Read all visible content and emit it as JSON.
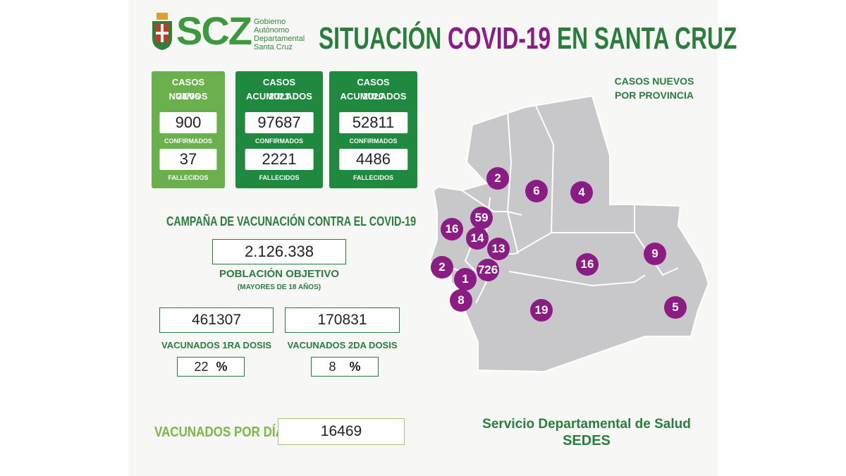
{
  "header": {
    "logo_acronym": "SCZ",
    "logo_lines": [
      "Gobierno",
      "Autónomo",
      "Departamental",
      "Santa Cruz"
    ],
    "title_part1": "SITUACIÓN",
    "title_part2": "COVID-19",
    "title_part3": "EN SANTA CRUZ"
  },
  "stats": [
    {
      "title_line1": "CASOS NUEVOS",
      "title_line2": "24/06",
      "confirmed": "900",
      "confirmed_label": "CONFIRMADOS",
      "deaths": "37",
      "deaths_label": "FALLECIDOS",
      "color": "#6ab04c"
    },
    {
      "title_line1": "CASOS ACUMULADOS",
      "title_line2": "2021",
      "confirmed": "97687",
      "confirmed_label": "CONFIRMADOS",
      "deaths": "2221",
      "deaths_label": "FALLECIDOS",
      "color": "#1f8a3f"
    },
    {
      "title_line1": "CASOS ACUMULADOS",
      "title_line2": "2020",
      "confirmed": "52811",
      "confirmed_label": "CONFIRMADOS",
      "deaths": "4486",
      "deaths_label": "FALLECIDOS",
      "color": "#1f8a3f"
    }
  ],
  "vaccination": {
    "heading": "CAMPAÑA DE VACUNACIÓN CONTRA EL COVID-19",
    "target_population": "2.126.338",
    "target_label": "POBLACIÓN OBJETIVO",
    "target_note": "(MAYORES DE 18 AÑOS)",
    "first_dose": "461307",
    "first_dose_label": "VACUNADOS 1RA DOSIS",
    "first_dose_pct": "22",
    "second_dose": "170831",
    "second_dose_label": "VACUNADOS 2DA DOSIS",
    "second_dose_pct": "8",
    "pct_symbol": "%",
    "per_day_label": "VACUNADOS POR DÍA",
    "per_day": "16469"
  },
  "map": {
    "title_line1": "CASOS NUEVOS",
    "title_line2": "POR PROVINCIA",
    "province_counts": [
      "2",
      "6",
      "4",
      "59",
      "16",
      "14",
      "13",
      "9",
      "16",
      "2",
      "726",
      "1",
      "8",
      "19",
      "5"
    ]
  },
  "footer": {
    "service": "Servicio Departamental de Salud",
    "acronym": "SEDES"
  },
  "colors": {
    "green": "#2a7d3c",
    "light_green": "#6ab04c",
    "purple": "#8a1c84",
    "map_gray": "#c9c9cb"
  }
}
